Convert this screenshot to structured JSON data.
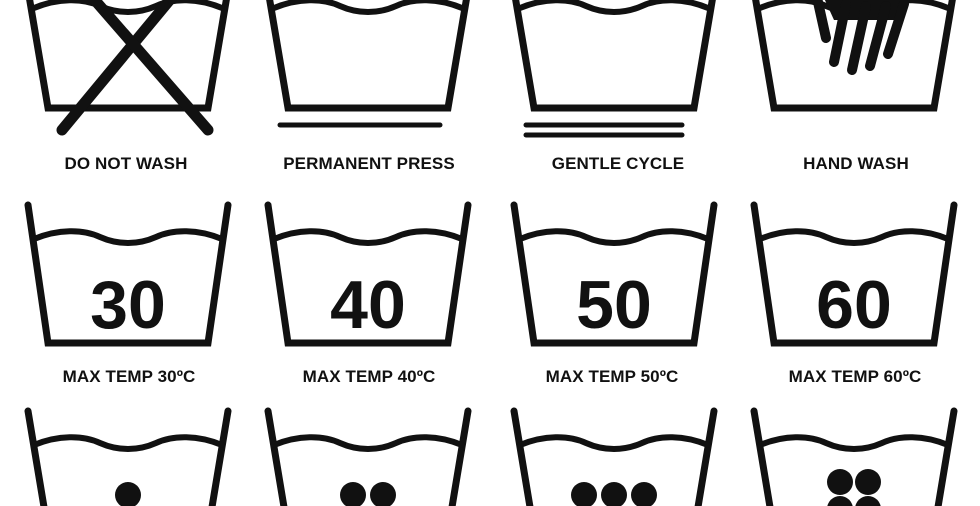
{
  "colors": {
    "ink": "#111111",
    "background": "#ffffff"
  },
  "symbols": [
    {
      "id": "do-not-wash",
      "icon": "washtub-crossed-out-icon",
      "label": "DO NOT WASH"
    },
    {
      "id": "permanent-press",
      "icon": "washtub-single-bar-icon",
      "label": "PERMANENT PRESS"
    },
    {
      "id": "gentle-cycle",
      "icon": "washtub-double-bar-icon",
      "label": "GENTLE CYCLE"
    },
    {
      "id": "hand-wash",
      "icon": "washtub-hand-icon",
      "label": "HAND WASH"
    },
    {
      "id": "max-temp-30",
      "icon": "washtub-temperature-icon",
      "number": "30",
      "label": "MAX TEMP 30ºC"
    },
    {
      "id": "max-temp-40",
      "icon": "washtub-temperature-icon",
      "number": "40",
      "label": "MAX TEMP 40ºC"
    },
    {
      "id": "max-temp-50",
      "icon": "washtub-temperature-icon",
      "number": "50",
      "label": "MAX TEMP 50ºC"
    },
    {
      "id": "max-temp-60",
      "icon": "washtub-temperature-icon",
      "number": "60",
      "label": "MAX TEMP 60ºC"
    },
    {
      "id": "dots-1",
      "icon": "washtub-one-dot-icon",
      "dots": 1
    },
    {
      "id": "dots-2",
      "icon": "washtub-two-dots-icon",
      "dots": 2
    },
    {
      "id": "dots-3",
      "icon": "washtub-three-dots-icon",
      "dots": 3
    },
    {
      "id": "dots-4",
      "icon": "washtub-four-dots-icon",
      "dots": 4
    }
  ]
}
